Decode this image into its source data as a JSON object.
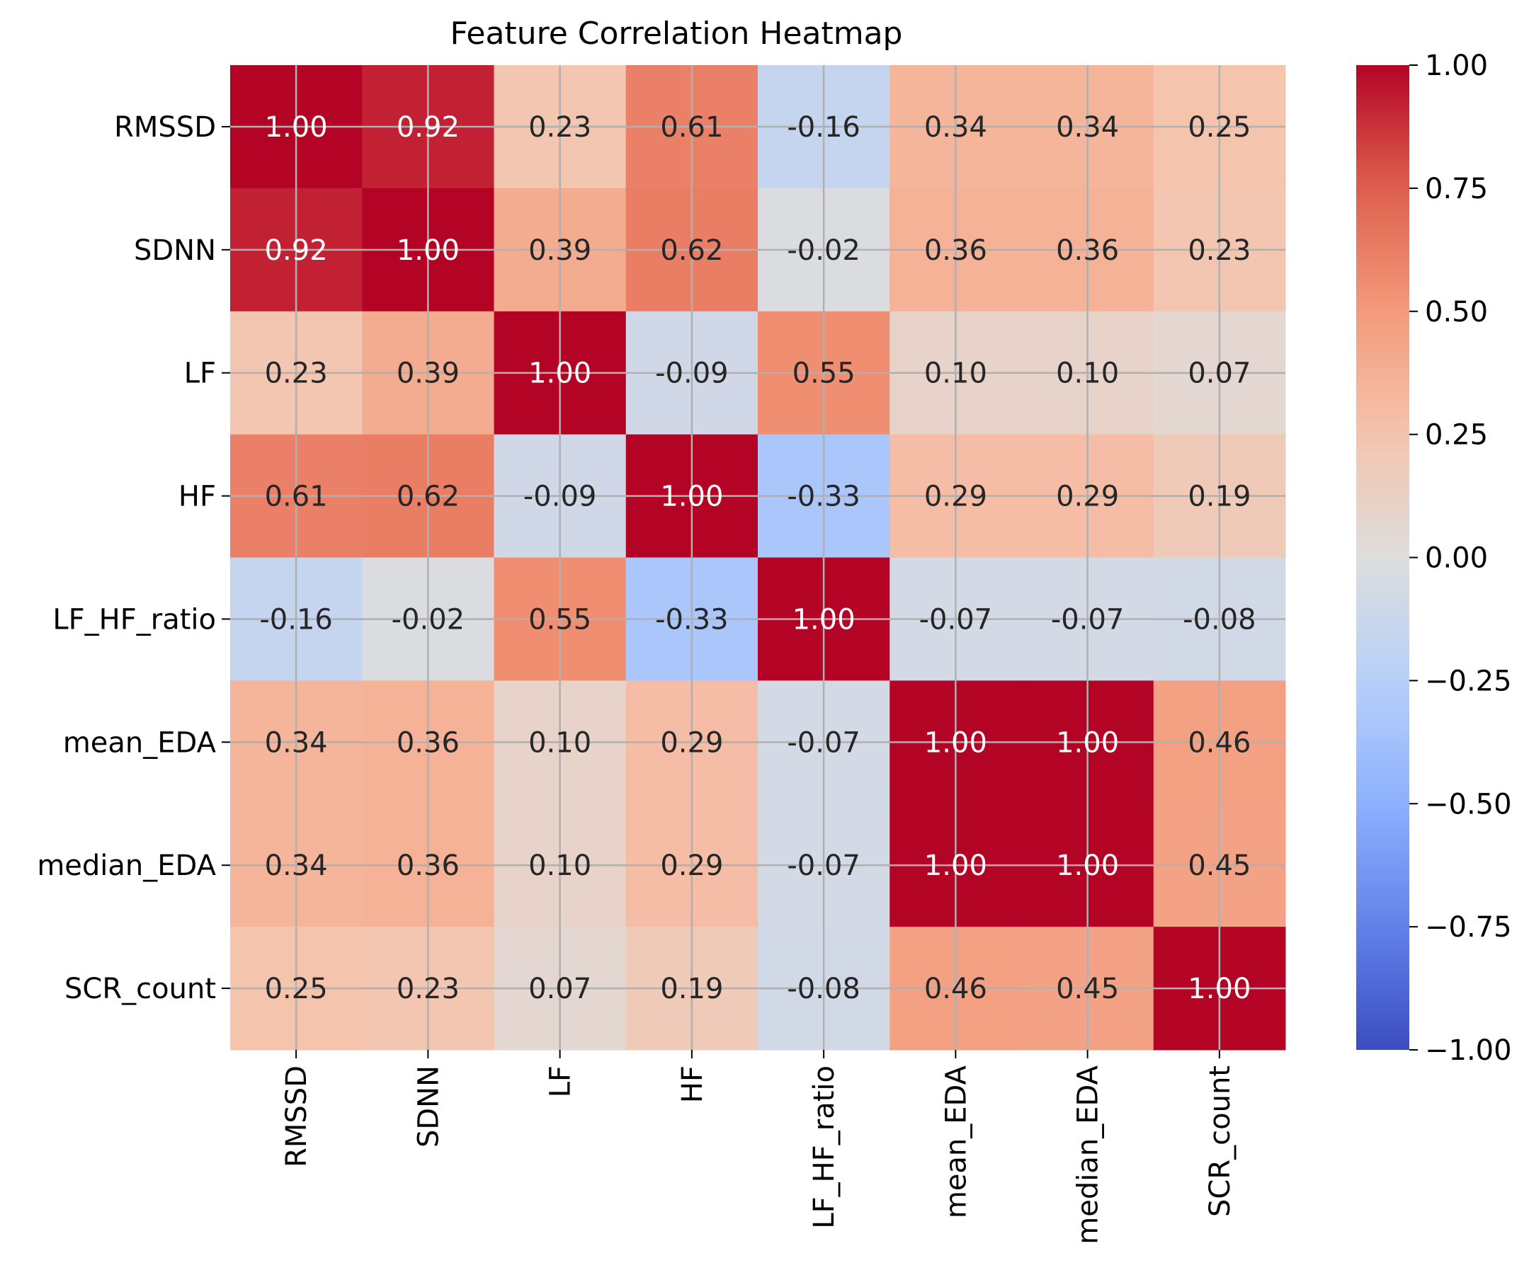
{
  "chart_data": {
    "type": "heatmap",
    "title": "Feature Correlation Heatmap",
    "xlabel": "",
    "ylabel": "",
    "rows": [
      "RMSSD",
      "SDNN",
      "LF",
      "HF",
      "LF_HF_ratio",
      "mean_EDA",
      "median_EDA",
      "SCR_count"
    ],
    "columns": [
      "RMSSD",
      "SDNN",
      "LF",
      "HF",
      "LF_HF_ratio",
      "mean_EDA",
      "median_EDA",
      "SCR_count"
    ],
    "values": [
      [
        1.0,
        0.92,
        0.23,
        0.61,
        -0.16,
        0.34,
        0.34,
        0.25
      ],
      [
        0.92,
        1.0,
        0.39,
        0.62,
        -0.02,
        0.36,
        0.36,
        0.23
      ],
      [
        0.23,
        0.39,
        1.0,
        -0.09,
        0.55,
        0.1,
        0.1,
        0.07
      ],
      [
        0.61,
        0.62,
        -0.09,
        1.0,
        -0.33,
        0.29,
        0.29,
        0.19
      ],
      [
        -0.16,
        -0.02,
        0.55,
        -0.33,
        1.0,
        -0.07,
        -0.07,
        -0.08
      ],
      [
        0.34,
        0.36,
        0.1,
        0.29,
        -0.07,
        1.0,
        1.0,
        0.46
      ],
      [
        0.34,
        0.36,
        0.1,
        0.29,
        -0.07,
        1.0,
        1.0,
        0.45
      ],
      [
        0.25,
        0.23,
        0.07,
        0.19,
        -0.08,
        0.46,
        0.45,
        1.0
      ]
    ],
    "annotation_format": "2 decimals",
    "colormap": "coolwarm",
    "vmin": -1.0,
    "vmax": 1.0,
    "colorbar_ticks": [
      "1.00",
      "0.75",
      "0.50",
      "0.25",
      "0.00",
      "−0.25",
      "−0.50",
      "−0.75",
      "−1.00"
    ],
    "colorbar_tick_values": [
      1.0,
      0.75,
      0.5,
      0.25,
      0.0,
      -0.25,
      -0.5,
      -0.75,
      -1.0
    ],
    "grid": true,
    "colors": {
      "grid_line": "#b0b0b0",
      "light_text": "#ffffff",
      "dark_text": "#262626"
    }
  }
}
